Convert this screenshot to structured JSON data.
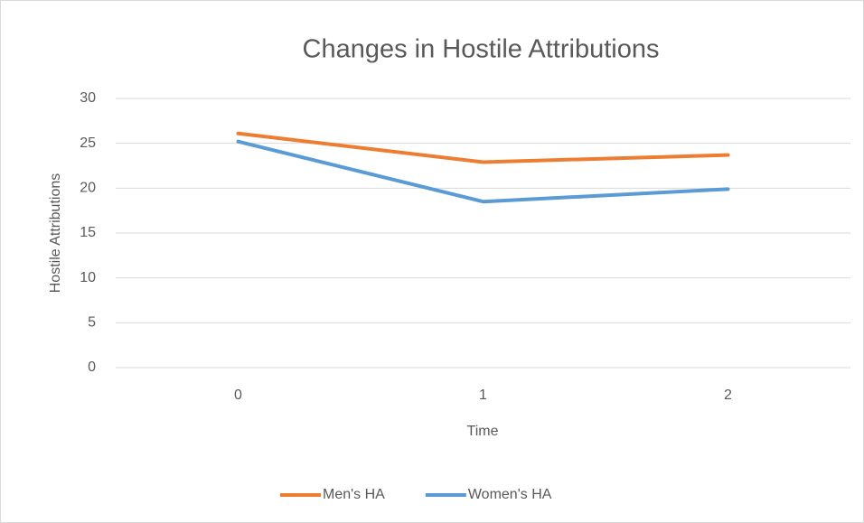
{
  "chart_data": {
    "type": "line",
    "title": "Changes in Hostile Attributions",
    "x_label": "Time",
    "y_label": "Hostile Attributions",
    "categories": [
      "0",
      "1",
      "2"
    ],
    "series": [
      {
        "name": "Men's HA",
        "color": "#ed7d31",
        "values": [
          26.1,
          22.9,
          23.7
        ]
      },
      {
        "name": "Women's HA",
        "color": "#5b9bd5",
        "values": [
          25.2,
          18.5,
          19.9
        ]
      }
    ],
    "ylim": [
      0,
      30
    ],
    "yticks": [
      0,
      5,
      10,
      15,
      20,
      25,
      30
    ],
    "grid": true,
    "legend": "bottom"
  }
}
